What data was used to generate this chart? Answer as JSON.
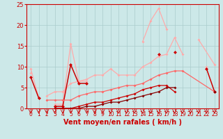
{
  "background_color": "#cce8e8",
  "grid_color": "#aacccc",
  "xlabel": "Vent moyen/en rafales ( km/h )",
  "xlabel_color": "#cc0000",
  "xlabel_fontsize": 7,
  "tick_color": "#cc0000",
  "tick_fontsize": 5.5,
  "xlim": [
    -0.5,
    23.5
  ],
  "ylim": [
    0,
    25
  ],
  "yticks": [
    0,
    5,
    10,
    15,
    20,
    25
  ],
  "xticks": [
    0,
    1,
    2,
    3,
    4,
    5,
    6,
    7,
    8,
    9,
    10,
    11,
    12,
    13,
    14,
    15,
    16,
    17,
    18,
    19,
    20,
    21,
    22,
    23
  ],
  "series": [
    {
      "x": [
        0,
        1,
        2,
        3,
        4,
        5,
        6,
        7,
        8,
        9,
        10,
        11,
        12,
        13,
        14,
        15,
        16,
        17,
        18,
        19,
        20,
        21,
        22,
        23
      ],
      "y": [
        8.5,
        null,
        3.0,
        4.0,
        4.0,
        6.0,
        6.5,
        7.0,
        8.0,
        8.0,
        9.5,
        8.0,
        8.0,
        8.0,
        10.0,
        11.0,
        12.5,
        13.0,
        17.0,
        13.0,
        null,
        null,
        10.0,
        null
      ],
      "color": "#ffaaaa",
      "lw": 0.9,
      "marker": "D",
      "ms": 2.0
    },
    {
      "x": [
        0,
        1,
        2,
        3,
        4,
        5,
        6,
        7,
        8,
        9,
        10,
        11,
        12,
        13,
        14,
        15,
        16,
        17,
        18,
        19,
        20,
        21,
        22,
        23
      ],
      "y": [
        9.5,
        2.5,
        null,
        1.0,
        1.0,
        15.5,
        6.5,
        6.5,
        null,
        null,
        null,
        null,
        null,
        null,
        null,
        null,
        12.5,
        null,
        null,
        null,
        null,
        null,
        null,
        null
      ],
      "color": "#ffaaaa",
      "lw": 0.9,
      "marker": "D",
      "ms": 2.0
    },
    {
      "x": [
        14,
        15,
        16,
        17
      ],
      "y": [
        16.0,
        21.0,
        24.0,
        19.0
      ],
      "color": "#ffaaaa",
      "lw": 0.9,
      "marker": "D",
      "ms": 2.0
    },
    {
      "x": [
        21,
        23
      ],
      "y": [
        16.5,
        10.5
      ],
      "color": "#ffaaaa",
      "lw": 0.9,
      "marker": "D",
      "ms": 2.0
    },
    {
      "x": [
        0,
        1,
        2,
        3,
        4,
        5,
        6,
        7,
        8,
        9,
        10,
        11,
        12,
        13,
        14,
        15,
        16,
        17,
        18,
        19,
        22,
        23
      ],
      "y": [
        7.5,
        2.5,
        null,
        0.5,
        0.5,
        10.5,
        6.0,
        6.0,
        null,
        null,
        null,
        null,
        null,
        null,
        null,
        null,
        13.0,
        null,
        13.5,
        null,
        9.5,
        4.0
      ],
      "color": "#cc0000",
      "lw": 1.1,
      "marker": "D",
      "ms": 2.5
    },
    {
      "x": [
        2,
        3,
        4,
        5,
        6,
        7,
        8,
        9,
        10,
        11,
        12,
        13,
        14,
        15,
        16,
        17,
        18,
        19,
        23
      ],
      "y": [
        2.0,
        2.0,
        2.0,
        2.0,
        3.0,
        3.5,
        4.0,
        4.0,
        4.5,
        5.0,
        5.5,
        5.5,
        6.0,
        7.0,
        8.0,
        8.5,
        9.0,
        9.0,
        4.0
      ],
      "color": "#ff6666",
      "lw": 0.9,
      "marker": "D",
      "ms": 2.0
    },
    {
      "x": [
        3,
        4,
        5,
        6,
        7,
        8,
        9,
        10,
        11,
        12,
        13,
        14,
        15,
        16,
        17,
        18,
        19,
        23
      ],
      "y": [
        0.0,
        0.0,
        0.0,
        0.5,
        1.0,
        1.5,
        1.5,
        2.0,
        2.5,
        3.0,
        3.5,
        4.5,
        5.0,
        5.5,
        5.5,
        4.0,
        null,
        4.0
      ],
      "color": "#cc0000",
      "lw": 0.9,
      "marker": "D",
      "ms": 2.0
    },
    {
      "x": [
        3,
        4,
        5,
        6,
        7,
        8,
        9,
        10,
        11,
        12,
        13,
        14,
        15,
        16,
        17,
        18,
        19,
        23
      ],
      "y": [
        0.0,
        0.0,
        0.0,
        0.0,
        0.5,
        0.5,
        1.0,
        1.5,
        1.5,
        2.0,
        2.5,
        3.0,
        3.5,
        4.0,
        5.0,
        5.0,
        null,
        4.0
      ],
      "color": "#880000",
      "lw": 0.9,
      "marker": "D",
      "ms": 2.0
    }
  ]
}
